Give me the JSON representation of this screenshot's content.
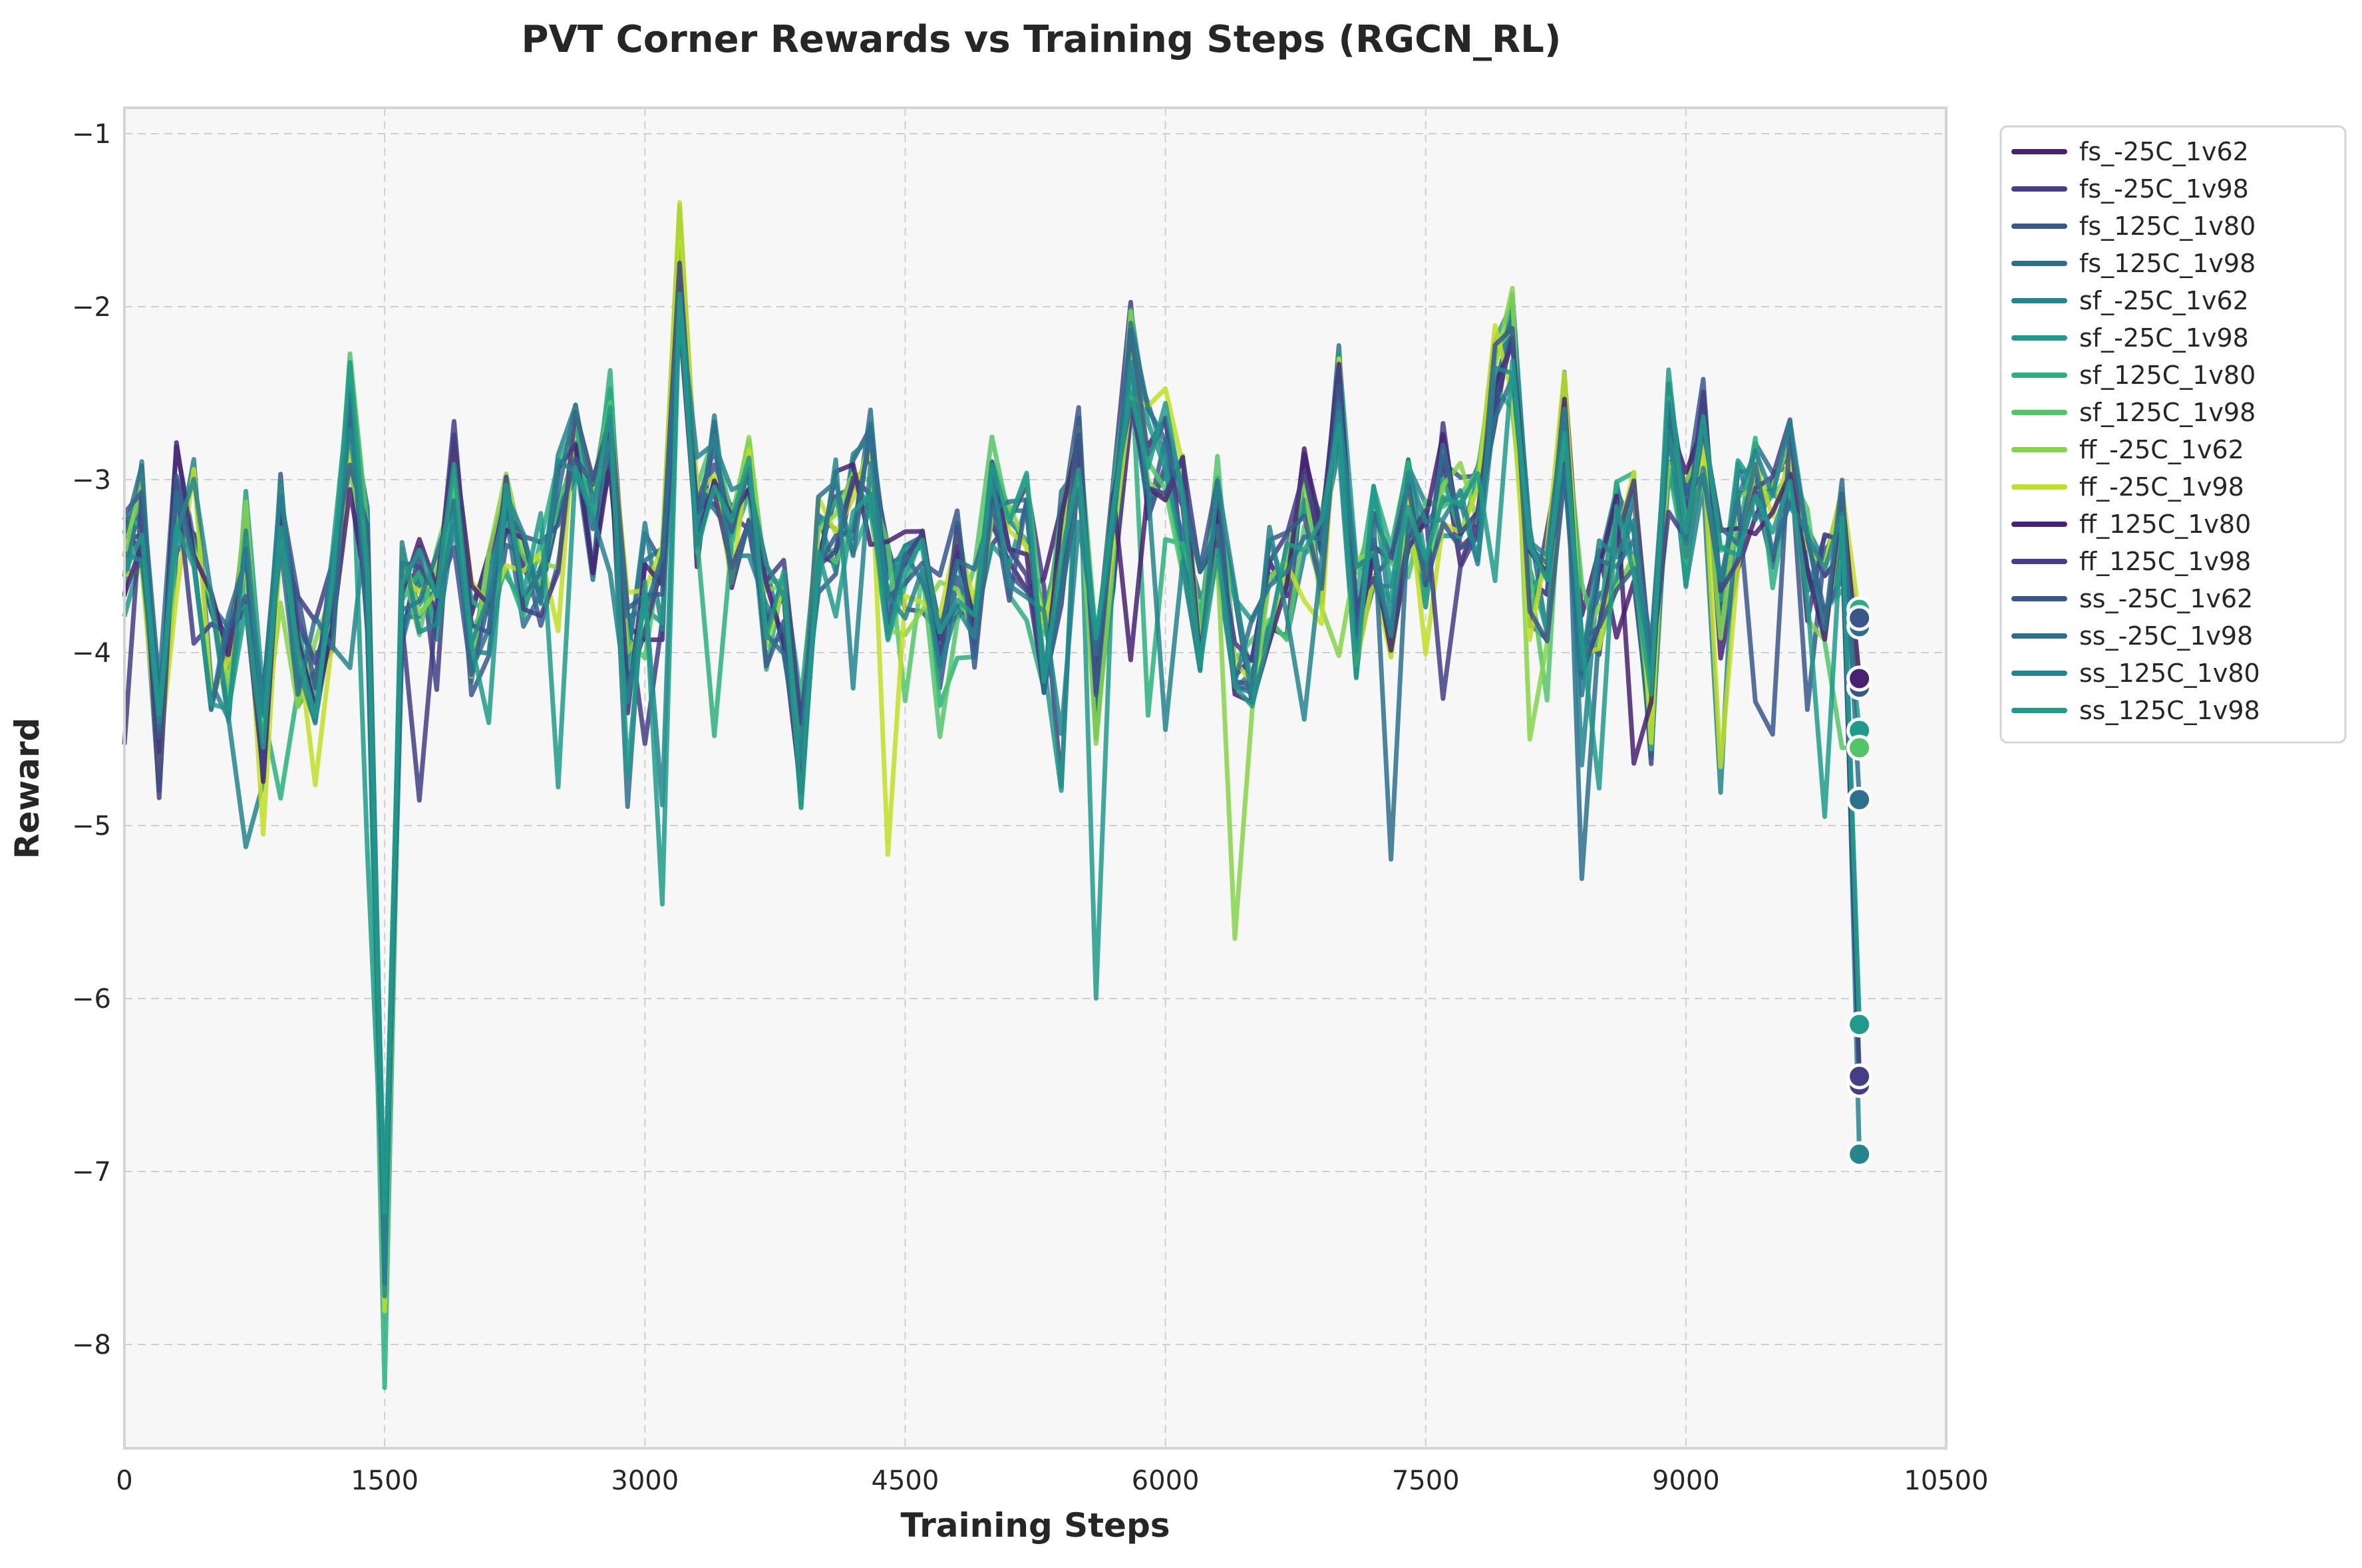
{
  "chart_data": {
    "type": "line",
    "title": "PVT Corner Rewards vs Training Steps (RGCN_RL)",
    "xlabel": "Training Steps",
    "ylabel": "Reward",
    "xlim": [
      0,
      10500
    ],
    "ylim": [
      -8.6,
      -0.85
    ],
    "xticks": [
      0,
      1500,
      3000,
      4500,
      6000,
      7500,
      9000,
      10500
    ],
    "yticks": [
      -8,
      -7,
      -6,
      -5,
      -4,
      -3,
      -2,
      -1
    ],
    "grid": true,
    "grid_style": "dashed",
    "plot_background": "#f7f7f7",
    "legend_position": "outside-top-right",
    "step_interval": 100,
    "base_curve": [
      -3.5,
      -3.2,
      -4.5,
      -3.1,
      -3.2,
      -4.0,
      -4.1,
      -3.4,
      -4.5,
      -3.3,
      -4.0,
      -4.1,
      -3.7,
      -2.6,
      -3.5,
      -7.5,
      -3.6,
      -3.6,
      -3.7,
      -3.0,
      -3.9,
      -3.7,
      -3.3,
      -3.5,
      -3.5,
      -3.2,
      -2.9,
      -3.3,
      -2.7,
      -4.0,
      -3.6,
      -3.7,
      -1.7,
      -3.2,
      -2.9,
      -3.3,
      -3.1,
      -3.8,
      -3.8,
      -4.6,
      -3.4,
      -3.2,
      -3.2,
      -2.9,
      -3.6,
      -3.6,
      -3.5,
      -3.9,
      -3.5,
      -3.8,
      -3.1,
      -3.4,
      -3.3,
      -3.9,
      -3.4,
      -2.9,
      -4.2,
      -3.3,
      -2.3,
      -2.9,
      -2.8,
      -3.2,
      -3.8,
      -3.2,
      -3.9,
      -4.1,
      -3.6,
      -3.6,
      -3.1,
      -3.5,
      -2.5,
      -3.8,
      -3.3,
      -3.7,
      -3.1,
      -3.4,
      -3.0,
      -3.2,
      -3.2,
      -2.4,
      -2.2,
      -3.6,
      -3.6,
      -2.7,
      -3.9,
      -3.7,
      -3.3,
      -3.3,
      -4.3,
      -2.7,
      -3.3,
      -2.7,
      -3.6,
      -3.2,
      -3.0,
      -3.3,
      -3.0,
      -3.5,
      -3.6,
      -3.3
    ],
    "series": [
      {
        "name": "fs_-25C_1v62",
        "color": "#482173",
        "final_x": 10000,
        "final_value": -4.2
      },
      {
        "name": "fs_-25C_1v98",
        "color": "#433e85",
        "final_x": 10000,
        "final_value": -6.5
      },
      {
        "name": "fs_125C_1v80",
        "color": "#38588c",
        "final_x": 10000,
        "final_value": -4.2
      },
      {
        "name": "fs_125C_1v98",
        "color": "#2d708e",
        "final_x": 10000,
        "final_value": -3.85
      },
      {
        "name": "sf_-25C_1v62",
        "color": "#25858e",
        "final_x": 10000,
        "final_value": -6.9
      },
      {
        "name": "sf_-25C_1v98",
        "color": "#1e9b8a",
        "final_x": 10000,
        "final_value": -4.45
      },
      {
        "name": "sf_125C_1v80",
        "color": "#2ab07f",
        "final_x": 10000,
        "final_value": -3.75
      },
      {
        "name": "sf_125C_1v98",
        "color": "#52c569",
        "final_x": 10000,
        "final_value": -4.55
      },
      {
        "name": "ff_-25C_1v62",
        "color": "#86d549",
        "final_x": 10000,
        "final_value": -4.15
      },
      {
        "name": "ff_-25C_1v98",
        "color": "#c2df23",
        "final_x": 10000,
        "final_value": -3.8
      },
      {
        "name": "ff_125C_1v80",
        "color": "#482173",
        "final_x": 10000,
        "final_value": -4.15
      },
      {
        "name": "ff_125C_1v98",
        "color": "#433e85",
        "final_x": 10000,
        "final_value": -6.45
      },
      {
        "name": "ss_-25C_1v62",
        "color": "#38588c",
        "final_x": 10000,
        "final_value": -3.8
      },
      {
        "name": "ss_-25C_1v98",
        "color": "#2d708e",
        "final_x": 10000,
        "final_value": -4.85
      },
      {
        "name": "ss_125C_1v80",
        "color": "#25858e",
        "final_x": 10000,
        "final_value": -6.15
      },
      {
        "name": "ss_125C_1v98",
        "color": "#1e9b8a",
        "final_x": 10000,
        "final_value": -6.15
      }
    ]
  }
}
